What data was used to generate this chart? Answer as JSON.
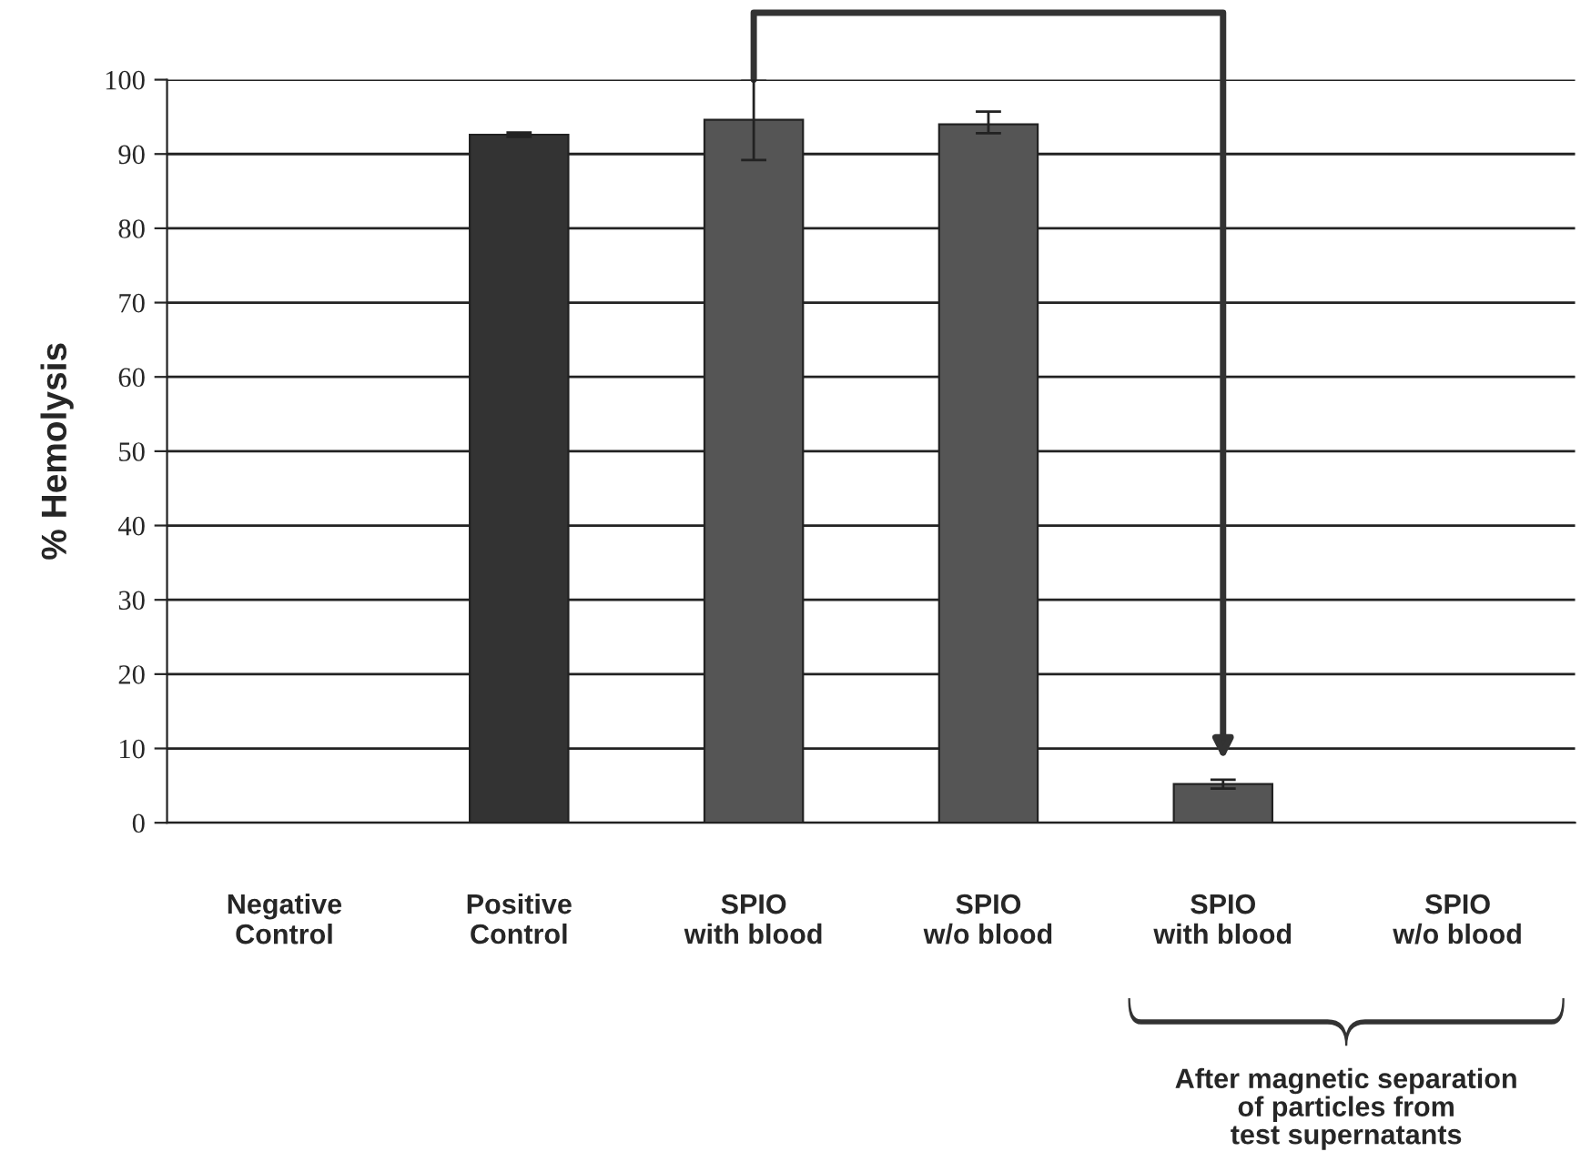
{
  "chart_data": {
    "type": "bar",
    "ylabel": "% Hemolysis",
    "categories": [
      "Negative\nControl",
      "Positive\nControl",
      "SPIO\nwith blood",
      "SPIO\nw/o blood",
      "SPIO\nwith blood",
      "SPIO\nw/o blood"
    ],
    "values": [
      null,
      92.6,
      94.6,
      94.0,
      5.2,
      null
    ],
    "errors": [
      null,
      0.3,
      [
        89.2,
        100
      ],
      [
        92.8,
        95.7
      ],
      0.6,
      null
    ],
    "colors": [
      "#555555",
      "#333333",
      "#555555",
      "#555555",
      "#555555",
      "#555555"
    ],
    "ylim": [
      0,
      100
    ],
    "yticks": [
      0,
      10,
      20,
      30,
      40,
      50,
      60,
      70,
      80,
      90,
      100
    ],
    "grid": "y",
    "legend": false,
    "annotations": [
      "After magnetic separation\nof particles from\ntest supernatants"
    ]
  }
}
